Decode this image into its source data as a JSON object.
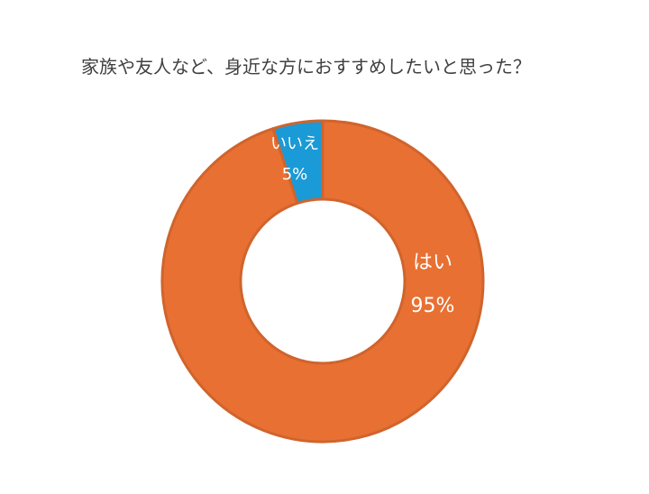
{
  "chart_data": {
    "type": "pie",
    "title": "家族や友人など、身近な方におすすめしたいと思った？",
    "categories": [
      "はい",
      "いいえ"
    ],
    "values": [
      95,
      5
    ],
    "value_labels": [
      "95%",
      "5%"
    ],
    "colors": [
      "#E87033",
      "#1A9AD6"
    ],
    "edge_colors": [
      "#D0642C",
      "#D0642C"
    ],
    "legend": "none"
  }
}
